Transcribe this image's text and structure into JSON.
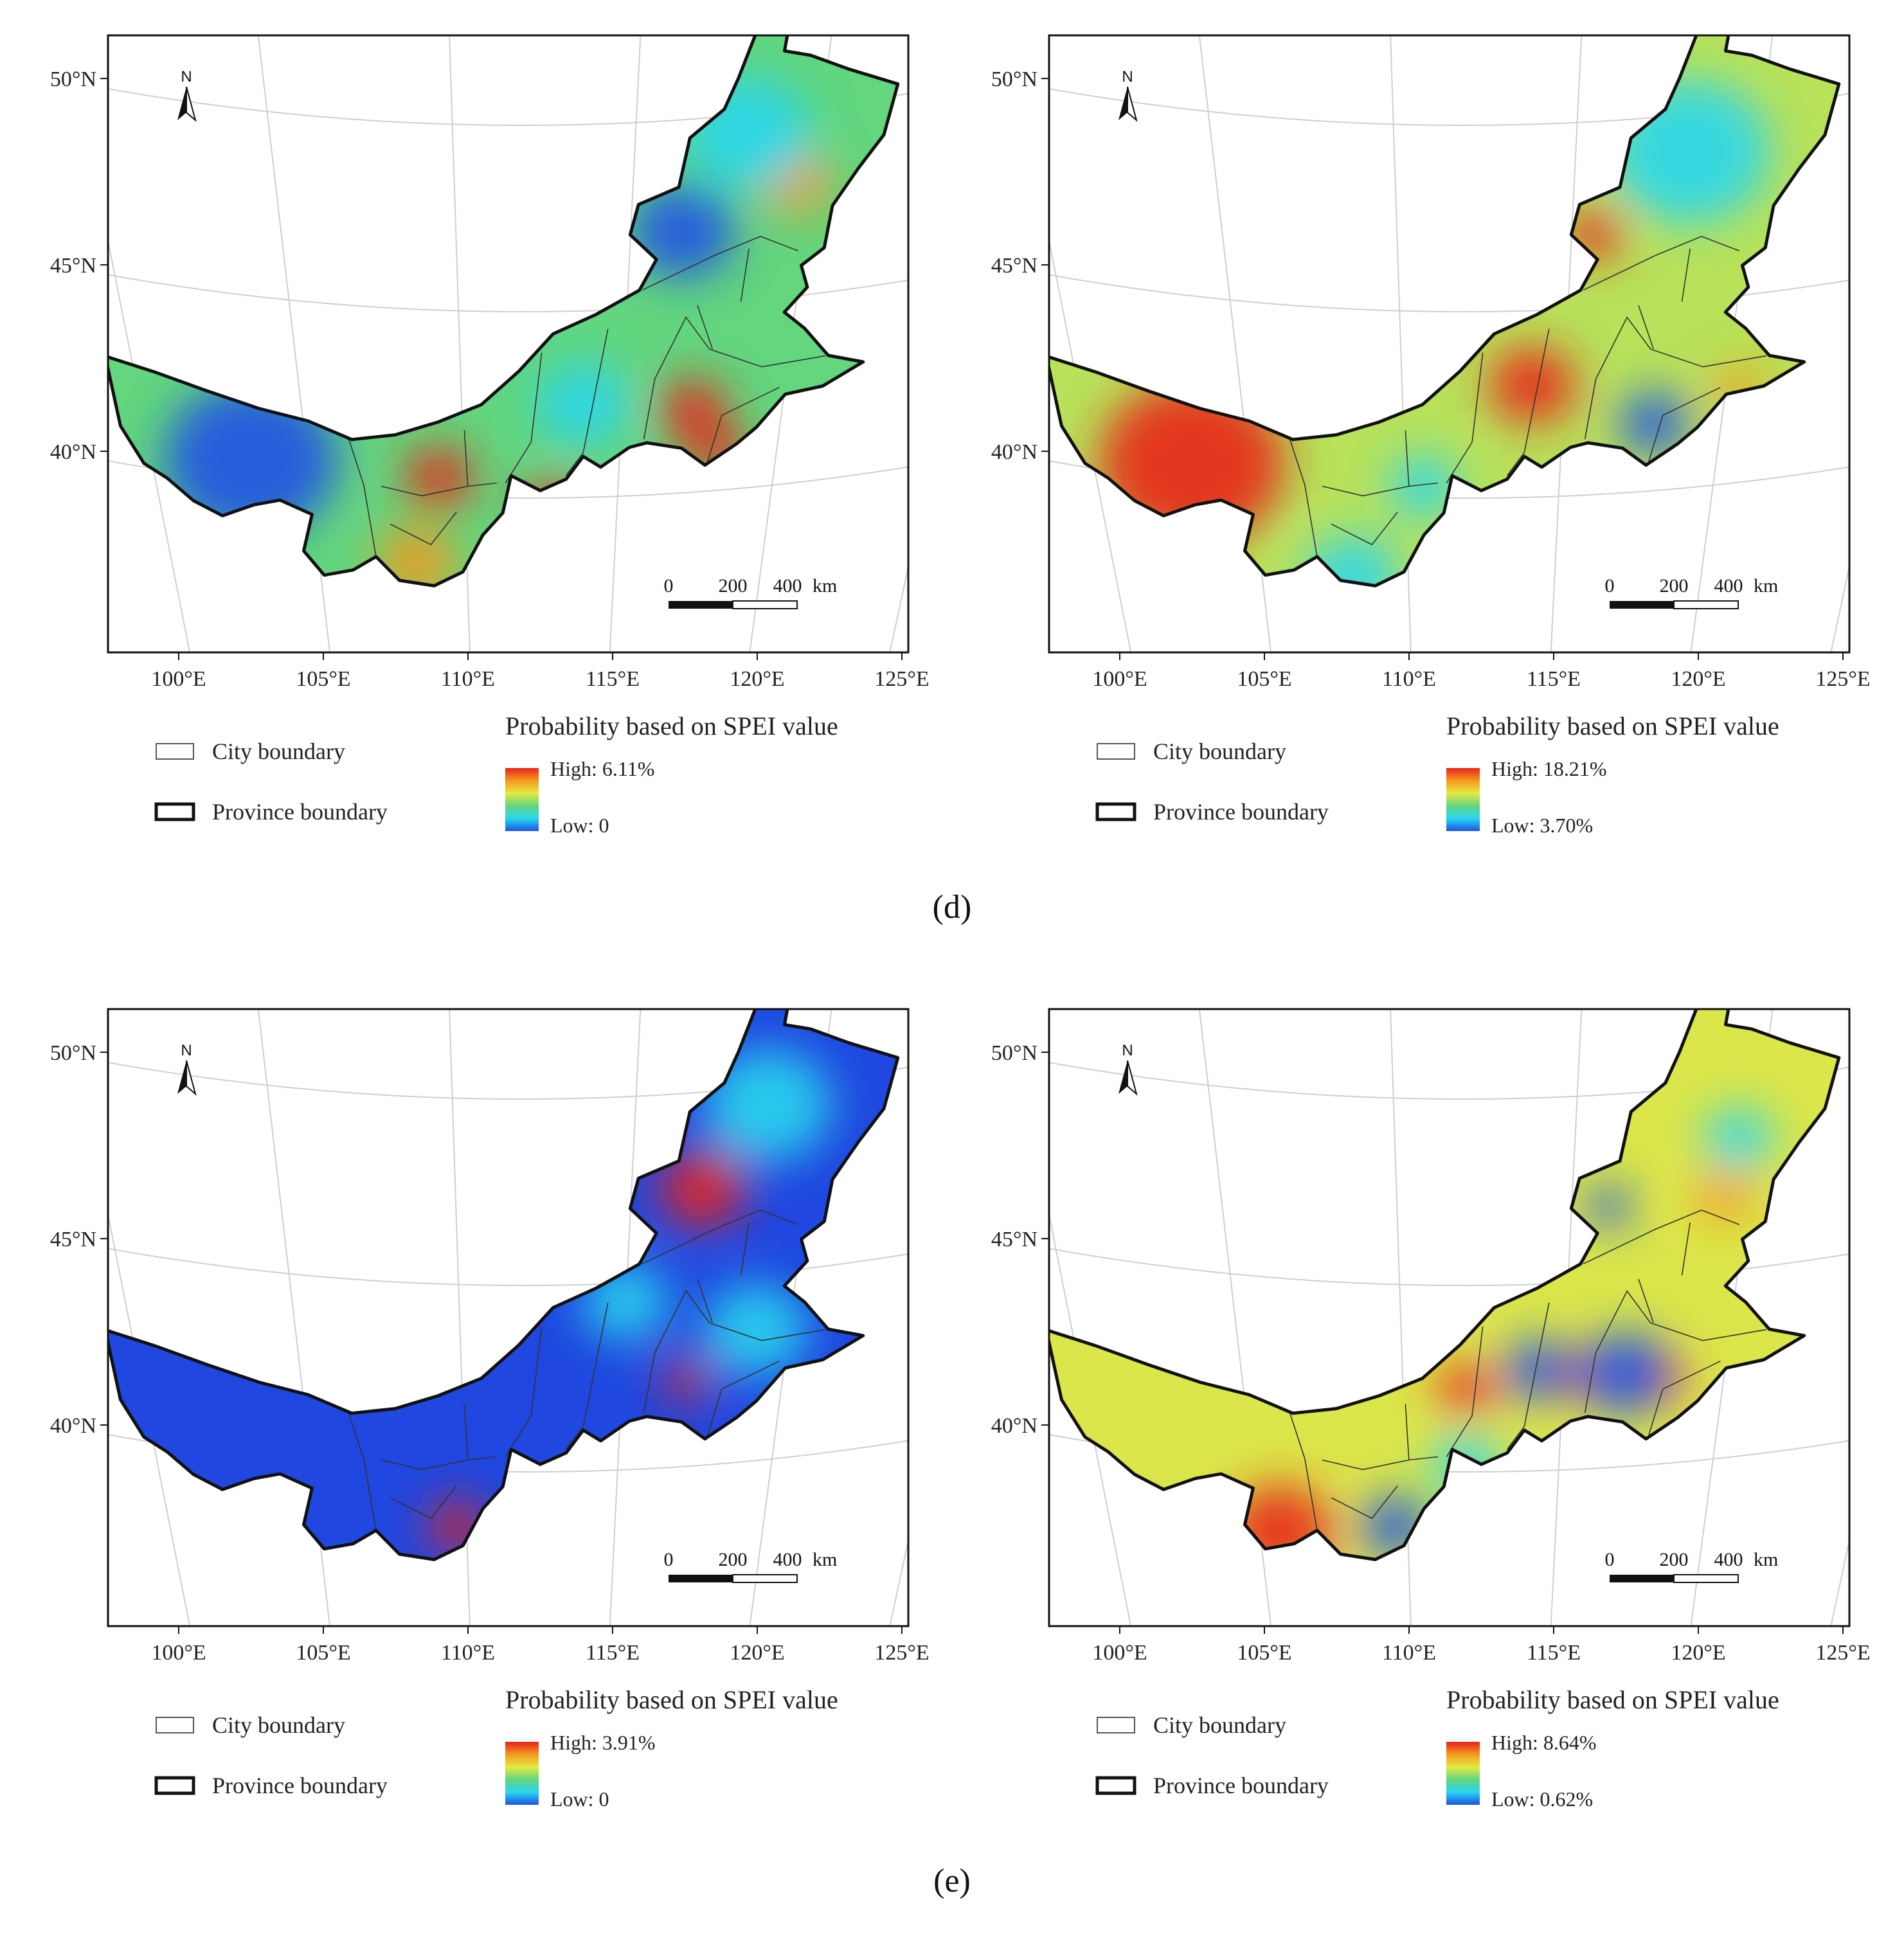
{
  "captions": [
    "(d)",
    "(e)"
  ],
  "lat_labels": [
    "50°N",
    "45°N",
    "40°N"
  ],
  "lon_labels": [
    "100°E",
    "105°E",
    "110°E",
    "115°E",
    "120°E",
    "125°E"
  ],
  "north_label": "N",
  "scale_bar": [
    "0",
    "200",
    "400",
    "km"
  ],
  "legend": {
    "city_boundary": "City boundary",
    "province_boundary": "Province boundary",
    "title": "Probability based on SPEI value"
  },
  "panels": [
    {
      "id": "d-left",
      "high": "High: 6.11%",
      "low": "Low: 0"
    },
    {
      "id": "d-right",
      "high": "High: 18.21%",
      "low": "Low: 3.70%"
    },
    {
      "id": "e-left",
      "high": "High: 3.91%",
      "low": "Low: 0"
    },
    {
      "id": "e-right",
      "high": "High: 8.64%",
      "low": "Low: 0.62%"
    }
  ],
  "colors": {
    "red": "#e8231b",
    "orange": "#f59a1e",
    "yellow": "#e5e842",
    "green": "#63d67e",
    "cyan": "#27d6ee",
    "blue": "#1f52e6",
    "frame": "#111111"
  },
  "hotspots": [
    {
      "panel": 0,
      "base": "#63d67e",
      "blobs": [
        {
          "lon": 102.5,
          "lat": 40.6,
          "r": 3.0,
          "c": "#1f52e6"
        },
        {
          "lon": 109.0,
          "lat": 40.5,
          "r": 1.2,
          "c": "#e8231b"
        },
        {
          "lon": 108.2,
          "lat": 38.2,
          "r": 1.4,
          "c": "#f59a1e"
        },
        {
          "lon": 113.0,
          "lat": 39.8,
          "r": 1.0,
          "c": "#e8231b"
        },
        {
          "lon": 117.8,
          "lat": 42.2,
          "r": 1.2,
          "c": "#e8231b"
        },
        {
          "lon": 118.6,
          "lat": 41.0,
          "r": 1.0,
          "c": "#e8231b"
        },
        {
          "lon": 121.5,
          "lat": 48.0,
          "r": 1.2,
          "c": "#f59a1e"
        },
        {
          "lon": 117.5,
          "lat": 47.0,
          "r": 1.8,
          "c": "#1f52e6"
        },
        {
          "lon": 119.8,
          "lat": 49.5,
          "r": 2.2,
          "c": "#27d6ee"
        },
        {
          "lon": 114.0,
          "lat": 42.5,
          "r": 1.6,
          "c": "#27d6ee"
        }
      ]
    },
    {
      "panel": 1,
      "base": "#b8e25a",
      "blobs": [
        {
          "lon": 102.5,
          "lat": 40.5,
          "r": 3.2,
          "c": "#e8231b"
        },
        {
          "lon": 114.3,
          "lat": 43.0,
          "r": 1.5,
          "c": "#e8231b"
        },
        {
          "lon": 116.5,
          "lat": 47.0,
          "r": 1.0,
          "c": "#e8231b"
        },
        {
          "lon": 119.8,
          "lat": 49.0,
          "r": 2.8,
          "c": "#27d6ee"
        },
        {
          "lon": 118.5,
          "lat": 41.8,
          "r": 1.2,
          "c": "#1f52e6"
        },
        {
          "lon": 110.5,
          "lat": 40.3,
          "r": 1.2,
          "c": "#27d6ee"
        },
        {
          "lon": 108.0,
          "lat": 37.8,
          "r": 1.6,
          "c": "#27d6ee"
        },
        {
          "lon": 121.5,
          "lat": 42.5,
          "r": 0.9,
          "c": "#f59a1e"
        }
      ]
    },
    {
      "panel": 2,
      "base": "#2048e0",
      "blobs": [
        {
          "lon": 118.2,
          "lat": 47.4,
          "r": 1.5,
          "c": "#e8231b"
        },
        {
          "lon": 109.6,
          "lat": 38.5,
          "r": 1.0,
          "c": "#e8231b"
        },
        {
          "lon": 117.6,
          "lat": 42.3,
          "r": 0.8,
          "c": "#e8231b"
        },
        {
          "lon": 120.5,
          "lat": 49.5,
          "r": 2.2,
          "c": "#27d6ee"
        },
        {
          "lon": 120.0,
          "lat": 43.5,
          "r": 1.8,
          "c": "#27d6ee"
        },
        {
          "lon": 115.5,
          "lat": 44.5,
          "r": 1.5,
          "c": "#27d6ee"
        }
      ]
    },
    {
      "panel": 3,
      "base": "#dbe64a",
      "blobs": [
        {
          "lon": 105.5,
          "lat": 38.2,
          "r": 1.8,
          "c": "#e8231b"
        },
        {
          "lon": 112.0,
          "lat": 42.2,
          "r": 1.0,
          "c": "#e8231b"
        },
        {
          "lon": 116.0,
          "lat": 42.5,
          "r": 0.8,
          "c": "#e8231b"
        },
        {
          "lon": 118.7,
          "lat": 42.3,
          "r": 0.9,
          "c": "#e8231b"
        },
        {
          "lon": 121.0,
          "lat": 47.0,
          "r": 1.0,
          "c": "#f59a1e"
        },
        {
          "lon": 117.5,
          "lat": 42.5,
          "r": 1.6,
          "c": "#1f52e6"
        },
        {
          "lon": 114.5,
          "lat": 42.7,
          "r": 1.2,
          "c": "#1f52e6"
        },
        {
          "lon": 109.5,
          "lat": 38.5,
          "r": 1.2,
          "c": "#1f52e6"
        },
        {
          "lon": 112.0,
          "lat": 40.2,
          "r": 1.2,
          "c": "#27d6ee"
        },
        {
          "lon": 117.0,
          "lat": 47.0,
          "r": 0.8,
          "c": "#1f52e6"
        },
        {
          "lon": 121.5,
          "lat": 48.5,
          "r": 1.2,
          "c": "#27d6ee"
        }
      ]
    }
  ]
}
